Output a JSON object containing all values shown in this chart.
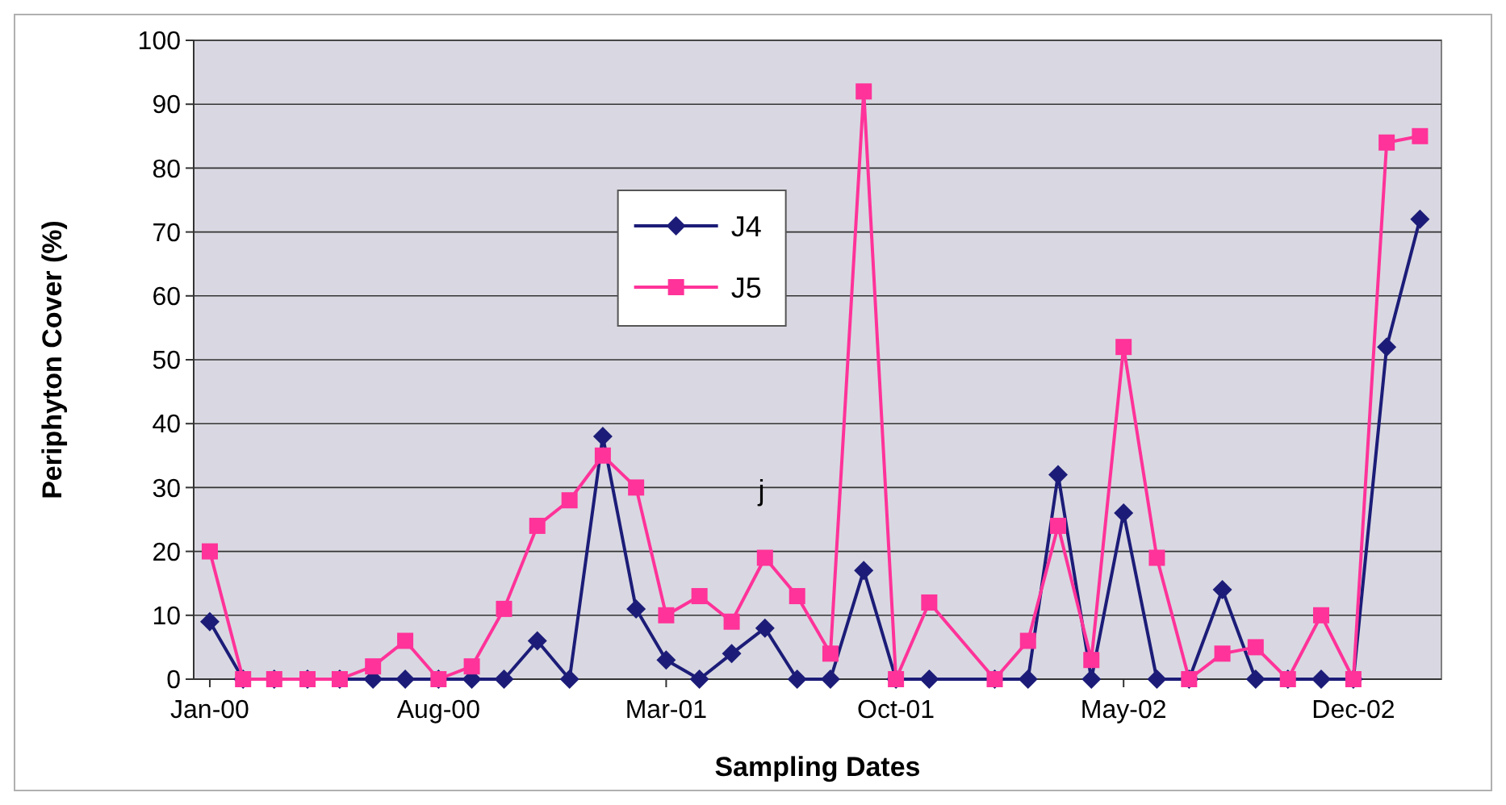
{
  "chart_data": {
    "type": "line",
    "xlabel": "Sampling Dates",
    "ylabel": "Periphyton Cover (%)",
    "x": [
      "2000-01",
      "2000-02",
      "2000-03",
      "2000-04",
      "2000-05",
      "2000-06",
      "2000-07",
      "2000-08",
      "2000-09",
      "2000-10",
      "2000-11",
      "2000-12",
      "2001-01",
      "2001-02",
      "2001-03",
      "2001-04",
      "2001-05",
      "2001-06",
      "2001-07",
      "2001-08",
      "2001-09",
      "2001-10",
      "2001-11",
      "2002-01",
      "2002-02",
      "2002-03",
      "2002-04",
      "2002-05",
      "2002-06",
      "2002-07",
      "2002-08",
      "2002-09",
      "2002-10",
      "2002-11",
      "2002-12",
      "2003-01",
      "2003-02"
    ],
    "series": [
      {
        "name": "J4",
        "color": "#1c1c78",
        "marker": "diamond",
        "values": [
          9,
          0,
          0,
          0,
          0,
          0,
          0,
          0,
          0,
          0,
          6,
          0,
          38,
          11,
          3,
          0,
          4,
          8,
          0,
          0,
          17,
          0,
          0,
          0,
          0,
          32,
          0,
          26,
          0,
          0,
          14,
          0,
          0,
          0,
          0,
          52,
          72
        ]
      },
      {
        "name": "J5",
        "color": "#ff3399",
        "marker": "square",
        "values": [
          20,
          0,
          0,
          0,
          0,
          2,
          6,
          0,
          2,
          11,
          24,
          28,
          35,
          30,
          10,
          13,
          9,
          19,
          13,
          4,
          92,
          0,
          12,
          0,
          6,
          24,
          3,
          52,
          19,
          0,
          4,
          5,
          0,
          10,
          0,
          84,
          85
        ]
      }
    ],
    "xlim": [
      "1999-12-17",
      "2003-02-21"
    ],
    "xticks": [
      {
        "value": "2000-01",
        "label": "Jan-00"
      },
      {
        "value": "2000-08",
        "label": "Aug-00"
      },
      {
        "value": "2001-03",
        "label": "Mar-01"
      },
      {
        "value": "2001-10",
        "label": "Oct-01"
      },
      {
        "value": "2002-05",
        "label": "May-02"
      },
      {
        "value": "2002-12",
        "label": "Dec-02"
      }
    ],
    "ylim": [
      0,
      100
    ],
    "yticks": [
      0,
      10,
      20,
      30,
      40,
      50,
      60,
      70,
      80,
      90,
      100
    ],
    "grid": "y",
    "legend": "top",
    "line_style": "solid",
    "annotations": [
      "j"
    ]
  }
}
